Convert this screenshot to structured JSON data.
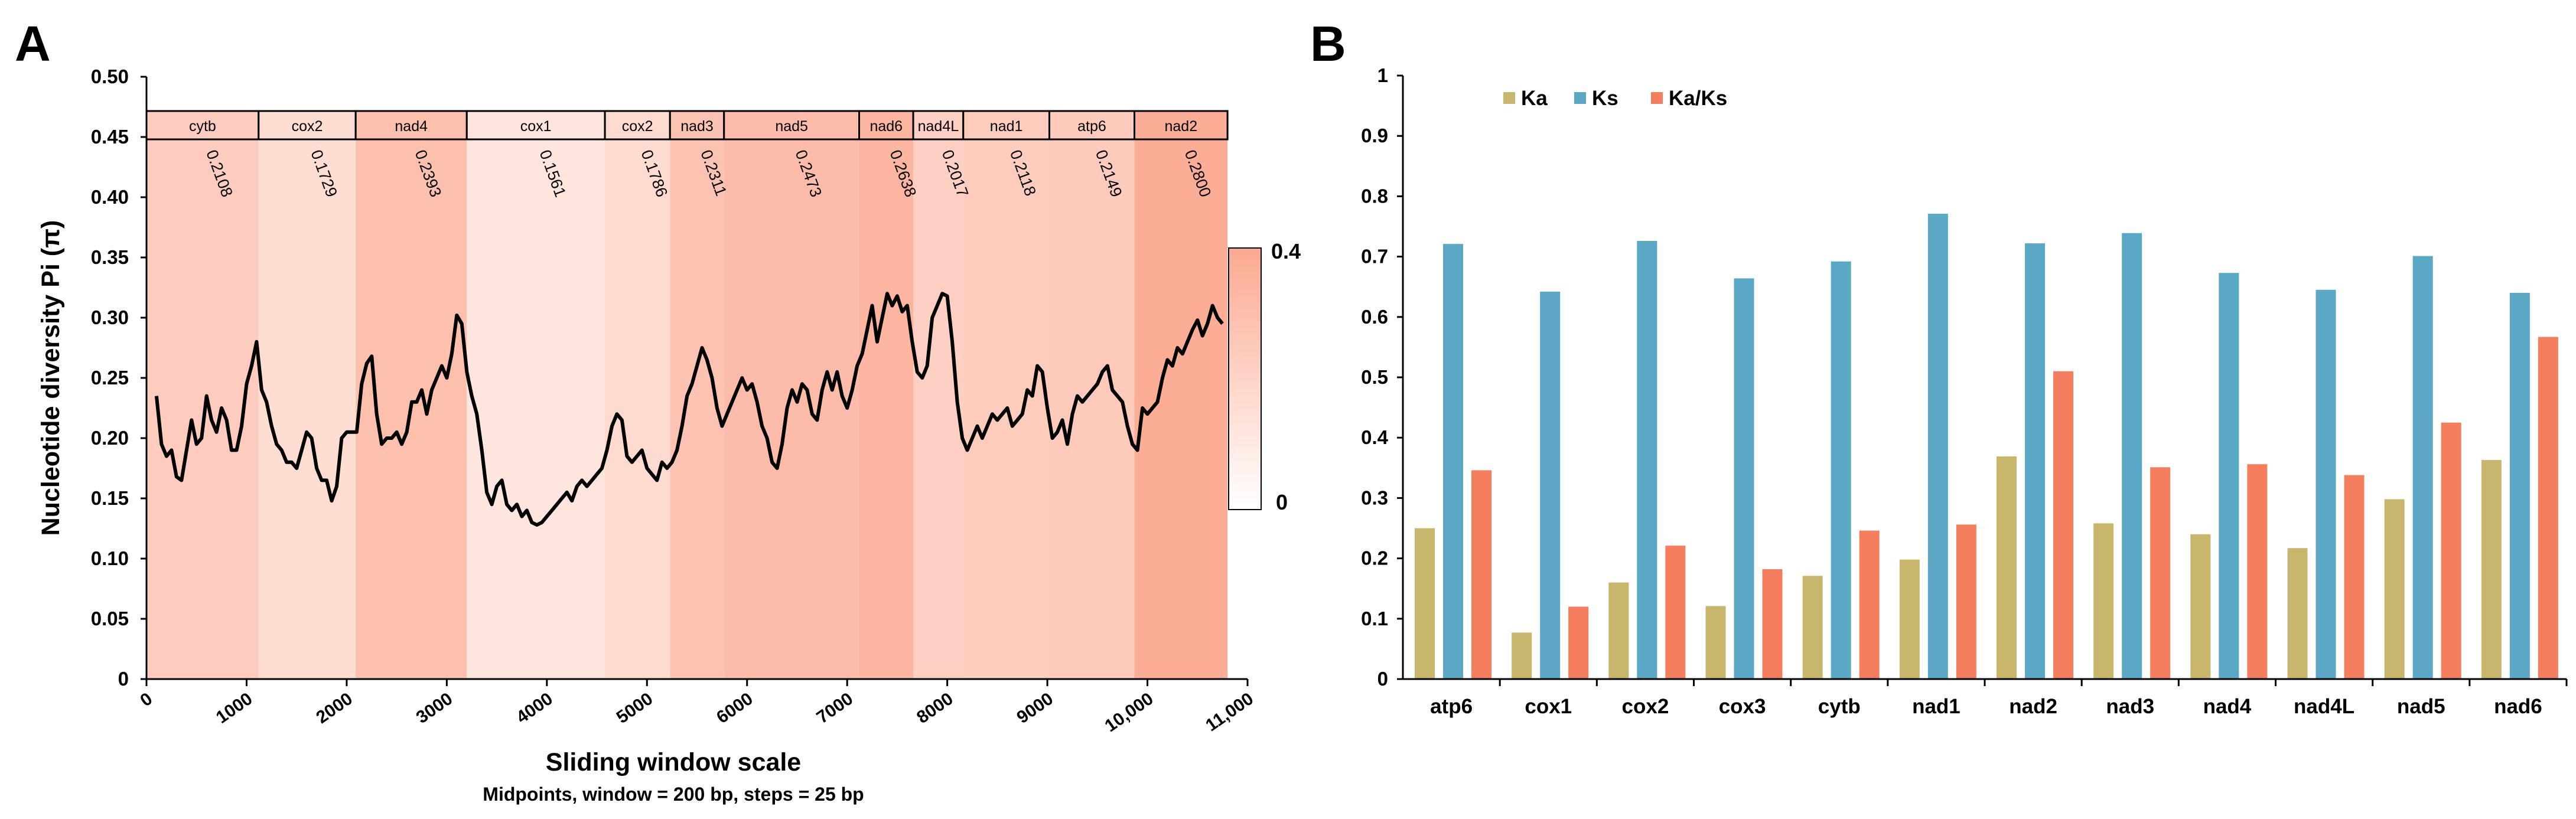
{
  "colors": {
    "gene_band_max": "#fca990",
    "pi_line": "#000000",
    "ka": "#c8b66c",
    "ks": "#5ba7c6",
    "ka_ks": "#f47e5e"
  },
  "chart_data": [
    {
      "panel": "A",
      "type": "line",
      "title": "",
      "xlabel": "Sliding window scale",
      "xlabel_sub": "Midpoints, window = 200 bp, steps = 25 bp",
      "ylabel": "Nucleotide diversity Pi (π)",
      "xlim": [
        0,
        11000
      ],
      "ylim": [
        0,
        0.5
      ],
      "x_ticks": [
        0,
        1000,
        2000,
        3000,
        4000,
        5000,
        6000,
        7000,
        8000,
        9000,
        10000,
        11000
      ],
      "x_tick_labels": [
        "0",
        "1000",
        "2000",
        "3000",
        "4000",
        "5000",
        "6000",
        "7000",
        "8000",
        "9000",
        "10,000",
        "11,000"
      ],
      "y_ticks": [
        0,
        0.05,
        0.1,
        0.15,
        0.2,
        0.25,
        0.3,
        0.35,
        0.4,
        0.45,
        0.5
      ],
      "y_tick_labels": [
        "0",
        "0.05",
        "0.10",
        "0.15",
        "0.20",
        "0.25",
        "0.30",
        "0.35",
        "0.40",
        "0.45",
        "0.50"
      ],
      "colorbar": {
        "min": 0,
        "max": 0.4,
        "min_label": "0",
        "max_label": "0.4"
      },
      "genes": [
        {
          "name": "cytb",
          "start": 0,
          "end": 1120,
          "pi": 0.2108,
          "pi_label": "0.2108"
        },
        {
          "name": "cox2",
          "start": 1120,
          "end": 2090,
          "pi": 0.1729,
          "pi_label": "0.1729"
        },
        {
          "name": "nad4",
          "start": 2090,
          "end": 3200,
          "pi": 0.2393,
          "pi_label": "0.2393"
        },
        {
          "name": "cox1",
          "start": 3200,
          "end": 4580,
          "pi": 0.1561,
          "pi_label": "0.1561"
        },
        {
          "name": "cox2",
          "start": 4580,
          "end": 5230,
          "pi": 0.1786,
          "pi_label": "0.1786"
        },
        {
          "name": "nad3",
          "start": 5230,
          "end": 5770,
          "pi": 0.2311,
          "pi_label": "0.2311"
        },
        {
          "name": "nad5",
          "start": 5770,
          "end": 7120,
          "pi": 0.2473,
          "pi_label": "0.2473"
        },
        {
          "name": "nad6",
          "start": 7120,
          "end": 7660,
          "pi": 0.2638,
          "pi_label": "0.2638"
        },
        {
          "name": "nad4L",
          "start": 7660,
          "end": 8160,
          "pi": 0.2017,
          "pi_label": "0.2017"
        },
        {
          "name": "nad1",
          "start": 8160,
          "end": 9020,
          "pi": 0.2118,
          "pi_label": "0.2118"
        },
        {
          "name": "atp6",
          "start": 9020,
          "end": 9870,
          "pi": 0.2149,
          "pi_label": "0.2149"
        },
        {
          "name": "nad2",
          "start": 9870,
          "end": 10800,
          "pi": 0.28,
          "pi_label": "0.2800"
        }
      ],
      "series": [
        {
          "name": "Pi",
          "points": [
            [
              100,
              0.235
            ],
            [
              150,
              0.195
            ],
            [
              200,
              0.185
            ],
            [
              250,
              0.19
            ],
            [
              300,
              0.168
            ],
            [
              350,
              0.165
            ],
            [
              400,
              0.19
            ],
            [
              450,
              0.215
            ],
            [
              500,
              0.195
            ],
            [
              550,
              0.2
            ],
            [
              600,
              0.235
            ],
            [
              650,
              0.215
            ],
            [
              700,
              0.205
            ],
            [
              750,
              0.225
            ],
            [
              800,
              0.215
            ],
            [
              850,
              0.19
            ],
            [
              900,
              0.19
            ],
            [
              950,
              0.21
            ],
            [
              1000,
              0.245
            ],
            [
              1050,
              0.26
            ],
            [
              1100,
              0.28
            ],
            [
              1150,
              0.24
            ],
            [
              1200,
              0.23
            ],
            [
              1250,
              0.21
            ],
            [
              1300,
              0.195
            ],
            [
              1350,
              0.19
            ],
            [
              1400,
              0.18
            ],
            [
              1450,
              0.18
            ],
            [
              1500,
              0.175
            ],
            [
              1550,
              0.19
            ],
            [
              1600,
              0.205
            ],
            [
              1650,
              0.2
            ],
            [
              1700,
              0.175
            ],
            [
              1750,
              0.165
            ],
            [
              1800,
              0.165
            ],
            [
              1850,
              0.148
            ],
            [
              1900,
              0.16
            ],
            [
              1950,
              0.2
            ],
            [
              2000,
              0.205
            ],
            [
              2050,
              0.205
            ],
            [
              2100,
              0.205
            ],
            [
              2150,
              0.245
            ],
            [
              2200,
              0.262
            ],
            [
              2250,
              0.268
            ],
            [
              2300,
              0.22
            ],
            [
              2350,
              0.195
            ],
            [
              2400,
              0.2
            ],
            [
              2450,
              0.2
            ],
            [
              2500,
              0.205
            ],
            [
              2550,
              0.195
            ],
            [
              2600,
              0.205
            ],
            [
              2650,
              0.23
            ],
            [
              2700,
              0.23
            ],
            [
              2750,
              0.24
            ],
            [
              2800,
              0.22
            ],
            [
              2850,
              0.24
            ],
            [
              2900,
              0.25
            ],
            [
              2950,
              0.26
            ],
            [
              3000,
              0.25
            ],
            [
              3050,
              0.27
            ],
            [
              3100,
              0.302
            ],
            [
              3150,
              0.295
            ],
            [
              3200,
              0.255
            ],
            [
              3250,
              0.235
            ],
            [
              3300,
              0.22
            ],
            [
              3350,
              0.19
            ],
            [
              3400,
              0.155
            ],
            [
              3450,
              0.145
            ],
            [
              3500,
              0.16
            ],
            [
              3550,
              0.165
            ],
            [
              3600,
              0.145
            ],
            [
              3650,
              0.14
            ],
            [
              3700,
              0.145
            ],
            [
              3750,
              0.135
            ],
            [
              3800,
              0.14
            ],
            [
              3850,
              0.13
            ],
            [
              3900,
              0.128
            ],
            [
              3950,
              0.13
            ],
            [
              4000,
              0.135
            ],
            [
              4050,
              0.14
            ],
            [
              4100,
              0.145
            ],
            [
              4150,
              0.15
            ],
            [
              4200,
              0.155
            ],
            [
              4250,
              0.148
            ],
            [
              4300,
              0.16
            ],
            [
              4350,
              0.165
            ],
            [
              4400,
              0.16
            ],
            [
              4450,
              0.165
            ],
            [
              4500,
              0.17
            ],
            [
              4550,
              0.175
            ],
            [
              4600,
              0.19
            ],
            [
              4650,
              0.21
            ],
            [
              4700,
              0.22
            ],
            [
              4750,
              0.215
            ],
            [
              4800,
              0.185
            ],
            [
              4850,
              0.18
            ],
            [
              4900,
              0.185
            ],
            [
              4950,
              0.19
            ],
            [
              5000,
              0.175
            ],
            [
              5050,
              0.17
            ],
            [
              5100,
              0.165
            ],
            [
              5150,
              0.18
            ],
            [
              5200,
              0.175
            ],
            [
              5250,
              0.18
            ],
            [
              5300,
              0.19
            ],
            [
              5350,
              0.21
            ],
            [
              5400,
              0.235
            ],
            [
              5450,
              0.245
            ],
            [
              5500,
              0.26
            ],
            [
              5550,
              0.275
            ],
            [
              5600,
              0.265
            ],
            [
              5650,
              0.25
            ],
            [
              5700,
              0.225
            ],
            [
              5750,
              0.21
            ],
            [
              5800,
              0.22
            ],
            [
              5850,
              0.23
            ],
            [
              5900,
              0.24
            ],
            [
              5950,
              0.25
            ],
            [
              6000,
              0.24
            ],
            [
              6050,
              0.245
            ],
            [
              6100,
              0.23
            ],
            [
              6150,
              0.21
            ],
            [
              6200,
              0.2
            ],
            [
              6250,
              0.18
            ],
            [
              6300,
              0.175
            ],
            [
              6350,
              0.195
            ],
            [
              6400,
              0.225
            ],
            [
              6450,
              0.24
            ],
            [
              6500,
              0.23
            ],
            [
              6550,
              0.245
            ],
            [
              6600,
              0.24
            ],
            [
              6650,
              0.22
            ],
            [
              6700,
              0.215
            ],
            [
              6750,
              0.24
            ],
            [
              6800,
              0.255
            ],
            [
              6850,
              0.24
            ],
            [
              6900,
              0.255
            ],
            [
              6950,
              0.235
            ],
            [
              7000,
              0.225
            ],
            [
              7050,
              0.24
            ],
            [
              7100,
              0.26
            ],
            [
              7150,
              0.27
            ],
            [
              7200,
              0.29
            ],
            [
              7250,
              0.31
            ],
            [
              7300,
              0.28
            ],
            [
              7350,
              0.3
            ],
            [
              7400,
              0.32
            ],
            [
              7450,
              0.31
            ],
            [
              7500,
              0.318
            ],
            [
              7550,
              0.305
            ],
            [
              7600,
              0.31
            ],
            [
              7650,
              0.28
            ],
            [
              7700,
              0.255
            ],
            [
              7750,
              0.25
            ],
            [
              7800,
              0.26
            ],
            [
              7850,
              0.3
            ],
            [
              7900,
              0.31
            ],
            [
              7950,
              0.32
            ],
            [
              8000,
              0.318
            ],
            [
              8050,
              0.28
            ],
            [
              8100,
              0.23
            ],
            [
              8150,
              0.2
            ],
            [
              8200,
              0.19
            ],
            [
              8250,
              0.2
            ],
            [
              8300,
              0.21
            ],
            [
              8350,
              0.2
            ],
            [
              8400,
              0.21
            ],
            [
              8450,
              0.22
            ],
            [
              8500,
              0.215
            ],
            [
              8550,
              0.22
            ],
            [
              8600,
              0.225
            ],
            [
              8650,
              0.21
            ],
            [
              8700,
              0.215
            ],
            [
              8750,
              0.22
            ],
            [
              8800,
              0.24
            ],
            [
              8850,
              0.235
            ],
            [
              8900,
              0.26
            ],
            [
              8950,
              0.255
            ],
            [
              9000,
              0.225
            ],
            [
              9050,
              0.2
            ],
            [
              9100,
              0.205
            ],
            [
              9150,
              0.215
            ],
            [
              9200,
              0.195
            ],
            [
              9250,
              0.22
            ],
            [
              9300,
              0.235
            ],
            [
              9350,
              0.23
            ],
            [
              9400,
              0.235
            ],
            [
              9450,
              0.24
            ],
            [
              9500,
              0.245
            ],
            [
              9550,
              0.255
            ],
            [
              9600,
              0.26
            ],
            [
              9650,
              0.24
            ],
            [
              9700,
              0.235
            ],
            [
              9750,
              0.23
            ],
            [
              9800,
              0.21
            ],
            [
              9850,
              0.195
            ],
            [
              9900,
              0.19
            ],
            [
              9950,
              0.225
            ],
            [
              10000,
              0.22
            ],
            [
              10050,
              0.225
            ],
            [
              10100,
              0.23
            ],
            [
              10150,
              0.25
            ],
            [
              10200,
              0.265
            ],
            [
              10250,
              0.26
            ],
            [
              10300,
              0.275
            ],
            [
              10350,
              0.27
            ],
            [
              10400,
              0.28
            ],
            [
              10450,
              0.29
            ],
            [
              10500,
              0.298
            ],
            [
              10550,
              0.285
            ],
            [
              10600,
              0.295
            ],
            [
              10650,
              0.31
            ],
            [
              10700,
              0.3
            ],
            [
              10750,
              0.295
            ]
          ]
        }
      ]
    },
    {
      "panel": "B",
      "type": "bar",
      "title": "",
      "xlabel": "",
      "ylabel": "",
      "ylim": [
        0,
        1
      ],
      "y_ticks": [
        0,
        0.1,
        0.2,
        0.3,
        0.4,
        0.5,
        0.6,
        0.7,
        0.8,
        0.9,
        1
      ],
      "y_tick_labels": [
        "0",
        "0.1",
        "0.2",
        "0.3",
        "0.4",
        "0.5",
        "0.6",
        "0.7",
        "0.8",
        "0.9",
        "1"
      ],
      "legend_position": "top-left",
      "categories": [
        "atp6",
        "cox1",
        "cox2",
        "cox3",
        "cytb",
        "nad1",
        "nad2",
        "nad3",
        "nad4",
        "nad4L",
        "nad5",
        "nad6"
      ],
      "series": [
        {
          "name": "Ka",
          "color": "#c8b66c",
          "values": [
            0.25,
            0.077,
            0.16,
            0.121,
            0.171,
            0.198,
            0.369,
            0.258,
            0.24,
            0.217,
            0.298,
            0.363
          ]
        },
        {
          "name": "Ks",
          "color": "#5ba7c6",
          "values": [
            0.721,
            0.642,
            0.726,
            0.664,
            0.692,
            0.771,
            0.722,
            0.739,
            0.673,
            0.645,
            0.701,
            0.64
          ]
        },
        {
          "name": "Ka/Ks",
          "color": "#f47e5e",
          "values": [
            0.346,
            0.12,
            0.221,
            0.182,
            0.246,
            0.256,
            0.51,
            0.351,
            0.356,
            0.338,
            0.425,
            0.567
          ]
        }
      ]
    }
  ]
}
